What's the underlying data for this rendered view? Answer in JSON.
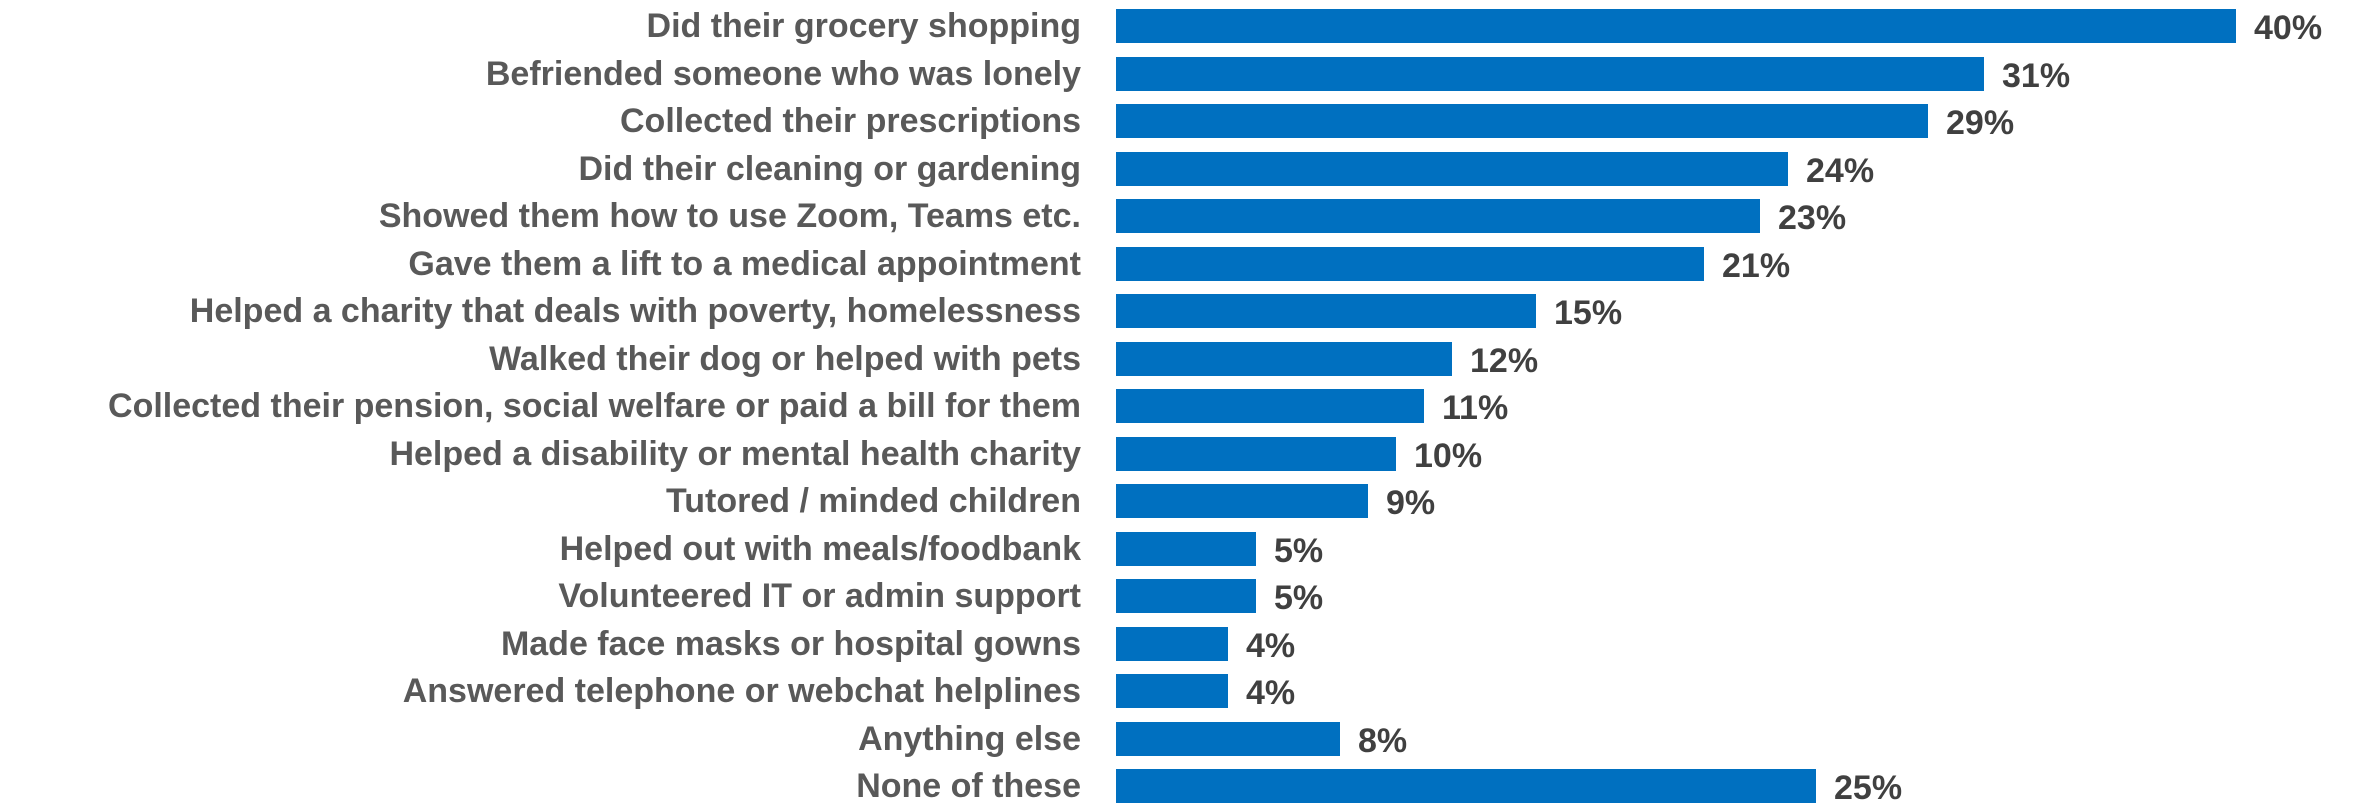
{
  "chart_data": {
    "type": "bar",
    "orientation": "horizontal",
    "categories": [
      "Did their grocery shopping",
      "Befriended someone who was lonely",
      "Collected their prescriptions",
      "Did their cleaning or gardening",
      "Showed them how to use Zoom, Teams etc.",
      "Gave them a lift to a medical appointment",
      "Helped a charity that deals with poverty, homelessness",
      "Walked their dog or helped with pets",
      "Collected their pension, social welfare or paid a bill for them",
      "Helped a disability or mental health charity",
      "Tutored / minded children",
      "Helped out with meals/foodbank",
      "Volunteered IT or admin support",
      "Made face masks or hospital gowns",
      "Answered telephone or webchat helplines",
      "Anything else",
      "None of these"
    ],
    "values": [
      40,
      31,
      29,
      24,
      23,
      21,
      15,
      12,
      11,
      10,
      9,
      5,
      5,
      4,
      4,
      8,
      25
    ],
    "value_labels": [
      "40%",
      "31%",
      "29%",
      "24%",
      "23%",
      "21%",
      "15%",
      "12%",
      "11%",
      "10%",
      "9%",
      "5%",
      "5%",
      "4%",
      "4%",
      "8%",
      "25%"
    ],
    "unit": "%",
    "xlim": [
      0,
      40
    ],
    "bar_color": "#0070C0",
    "grid": false,
    "legend": "none"
  }
}
